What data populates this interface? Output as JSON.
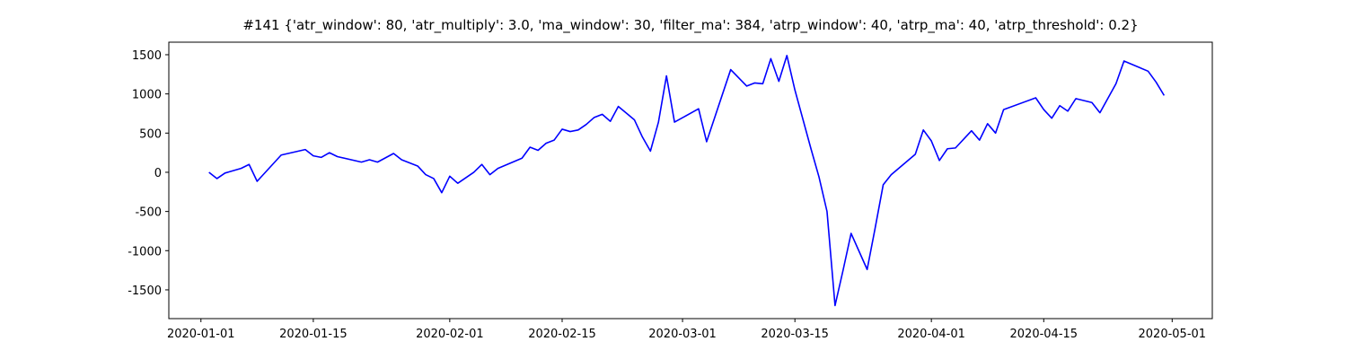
{
  "chart_data": {
    "type": "line",
    "title": "#141 {'atr_window': 80, 'atr_multiply': 3.0, 'ma_window': 30, 'filter_ma': 384, 'atrp_window': 40, 'atrp_ma': 40, 'atrp_threshold': 0.2}",
    "x": [
      "2020-01-02",
      "2020-01-03",
      "2020-01-04",
      "2020-01-06",
      "2020-01-07",
      "2020-01-08",
      "2020-01-11",
      "2020-01-14",
      "2020-01-15",
      "2020-01-16",
      "2020-01-17",
      "2020-01-18",
      "2020-01-21",
      "2020-01-22",
      "2020-01-23",
      "2020-01-25",
      "2020-01-26",
      "2020-01-28",
      "2020-01-29",
      "2020-01-30",
      "2020-01-31",
      "2020-02-01",
      "2020-02-02",
      "2020-02-04",
      "2020-02-05",
      "2020-02-06",
      "2020-02-07",
      "2020-02-10",
      "2020-02-11",
      "2020-02-12",
      "2020-02-13",
      "2020-02-14",
      "2020-02-15",
      "2020-02-16",
      "2020-02-17",
      "2020-02-18",
      "2020-02-19",
      "2020-02-20",
      "2020-02-21",
      "2020-02-22",
      "2020-02-24",
      "2020-02-25",
      "2020-02-26",
      "2020-02-27",
      "2020-02-28",
      "2020-02-29",
      "2020-03-03",
      "2020-03-04",
      "2020-03-07",
      "2020-03-09",
      "2020-03-10",
      "2020-03-11",
      "2020-03-12",
      "2020-03-13",
      "2020-03-14",
      "2020-03-15",
      "2020-03-17",
      "2020-03-18",
      "2020-03-19",
      "2020-03-20",
      "2020-03-21",
      "2020-03-22",
      "2020-03-24",
      "2020-03-25",
      "2020-03-26",
      "2020-03-27",
      "2020-03-30",
      "2020-03-31",
      "2020-04-01",
      "2020-04-02",
      "2020-04-03",
      "2020-04-04",
      "2020-04-06",
      "2020-04-07",
      "2020-04-08",
      "2020-04-09",
      "2020-04-10",
      "2020-04-14",
      "2020-04-15",
      "2020-04-16",
      "2020-04-17",
      "2020-04-18",
      "2020-04-19",
      "2020-04-21",
      "2020-04-22",
      "2020-04-24",
      "2020-04-25",
      "2020-04-28",
      "2020-04-29",
      "2020-04-30"
    ],
    "series": [
      {
        "color": "#0000ff",
        "values": [
          0,
          -80,
          -10,
          50,
          100,
          -115,
          220,
          290,
          210,
          190,
          250,
          200,
          130,
          160,
          130,
          240,
          160,
          80,
          -30,
          -80,
          -260,
          -50,
          -140,
          0,
          100,
          -30,
          50,
          180,
          320,
          280,
          370,
          410,
          550,
          520,
          540,
          610,
          700,
          740,
          650,
          840,
          670,
          450,
          270,
          640,
          1230,
          640,
          810,
          390,
          1310,
          1100,
          1140,
          1130,
          1450,
          1160,
          1490,
          1050,
          300,
          -60,
          -500,
          -1700,
          -1250,
          -780,
          -1240,
          -710,
          -160,
          -30,
          230,
          540,
          400,
          150,
          300,
          310,
          530,
          410,
          620,
          500,
          800,
          950,
          800,
          690,
          850,
          780,
          940,
          890,
          760,
          1130,
          1420,
          1290,
          1150,
          980
        ]
      }
    ],
    "xlim": [
      "2019-12-28",
      "2020-05-06"
    ],
    "xticks": [
      "2020-01-01",
      "2020-01-15",
      "2020-02-01",
      "2020-02-15",
      "2020-03-01",
      "2020-03-15",
      "2020-04-01",
      "2020-04-15",
      "2020-05-01"
    ],
    "ylim": [
      -1867,
      1660
    ],
    "yticks": [
      -1500,
      -1000,
      -500,
      0,
      500,
      1000,
      1500
    ]
  }
}
